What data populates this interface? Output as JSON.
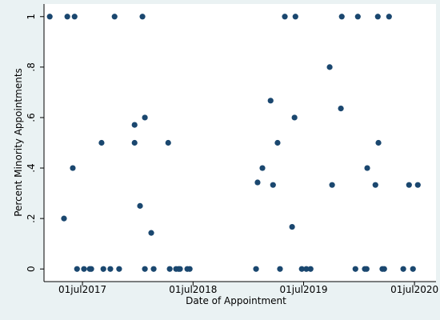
{
  "chart_data": {
    "type": "scatter",
    "xlabel": "Date of Appointment",
    "ylabel": "Percent Minority Appointments",
    "color": "#1a476f",
    "x": [
      20893,
      20940,
      20951,
      20969,
      20975,
      20983,
      21006,
      21025,
      21030,
      21064,
      21070,
      21093,
      21107,
      21122,
      21173,
      21173,
      21191,
      21199,
      21207,
      21207,
      21228,
      21236,
      21284,
      21289,
      21310,
      21318,
      21323,
      21347,
      21355,
      21574,
      21579,
      21595,
      21622,
      21630,
      21645,
      21653,
      21669,
      21693,
      21701,
      21704,
      21725,
      21740,
      21754,
      21817,
      21825,
      21854,
      21857,
      21902,
      21910,
      21933,
      21939,
      21941,
      21968,
      21976,
      21978,
      21991,
      21997,
      22013,
      22060,
      22079,
      22092,
      22108
    ],
    "values": [
      1,
      0.2,
      1,
      0.4,
      1,
      0,
      0,
      0,
      0,
      0.5,
      0,
      0,
      1,
      0,
      0.571,
      0.5,
      0.25,
      1,
      0.6,
      0,
      0.143,
      0,
      0.5,
      0,
      0,
      0,
      0,
      0,
      0,
      0,
      0.343,
      0.4,
      0.667,
      0.333,
      0.5,
      0,
      1,
      0.167,
      0.6,
      1,
      0,
      0,
      0,
      0.8,
      0.333,
      0.636,
      1,
      0,
      1,
      0,
      0,
      0.4,
      0.333,
      1,
      0.5,
      0,
      0,
      1,
      0,
      0.333,
      0,
      0.333
    ],
    "xlim": [
      20874,
      22168
    ],
    "ylim": [
      -0.05,
      1.05
    ],
    "xticks": [
      {
        "value": 21001,
        "label": "01jul2017"
      },
      {
        "value": 21366,
        "label": "01jul2018"
      },
      {
        "value": 21731,
        "label": "01jul2019"
      },
      {
        "value": 22097,
        "label": "01jul2020"
      }
    ],
    "yticks": [
      0,
      {
        "value": 0.2,
        "label": ".2"
      },
      {
        "value": 0.4,
        "label": ".4"
      },
      {
        "value": 0.6,
        "label": ".6"
      },
      {
        "value": 0.8,
        "label": ".8"
      },
      1
    ]
  }
}
